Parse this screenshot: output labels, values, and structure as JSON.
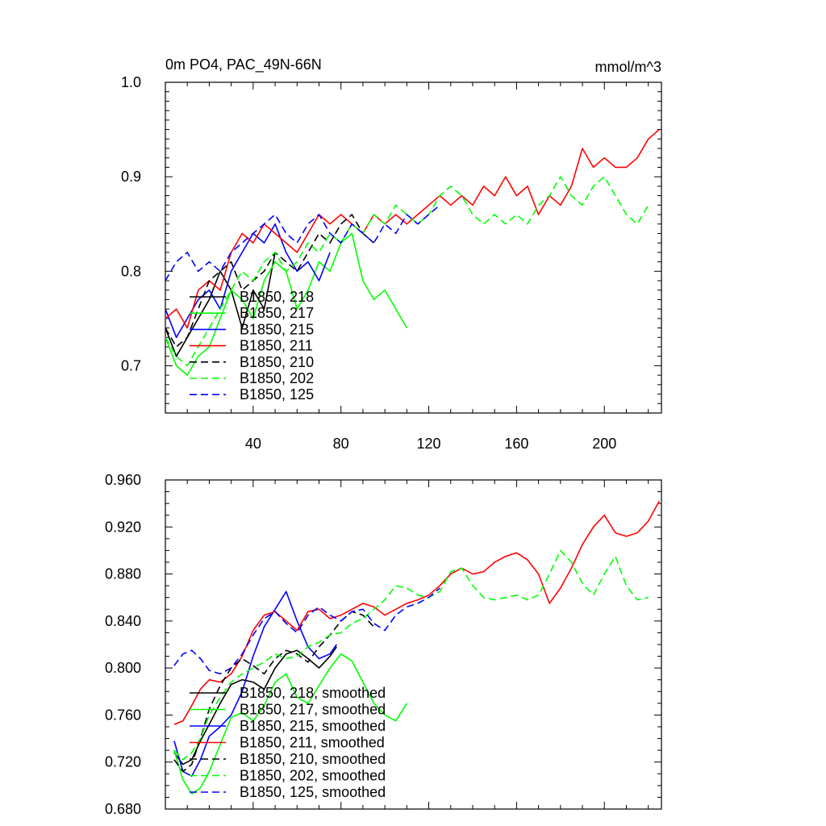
{
  "chart_data": [
    {
      "type": "line",
      "title": "0m PO4, PAC_49N-66N",
      "units": "mmol/m^3",
      "xlim": [
        0,
        226
      ],
      "ylim": [
        0.65,
        1.0
      ],
      "xticks": [
        40,
        80,
        120,
        160,
        200
      ],
      "yticks": [
        0.7,
        0.8,
        0.9,
        1.0
      ],
      "ytick_labels": [
        "0.7",
        "0.8",
        "0.9",
        "1.0"
      ],
      "legend_position": "lower-left",
      "series": [
        {
          "name": "B1850, 218",
          "color": "#000000",
          "dash": "solid",
          "x": [
            0,
            5,
            10,
            15,
            20,
            25,
            30,
            35,
            40,
            45,
            50
          ],
          "y": [
            0.74,
            0.71,
            0.73,
            0.75,
            0.77,
            0.8,
            0.78,
            0.74,
            0.78,
            0.76,
            0.82
          ]
        },
        {
          "name": "B1850, 217",
          "color": "#00ff00",
          "dash": "solid",
          "x": [
            0,
            5,
            10,
            15,
            20,
            25,
            30,
            35,
            40,
            45,
            50,
            55,
            60,
            65,
            70,
            75,
            80,
            85,
            90,
            95,
            100,
            105,
            110
          ],
          "y": [
            0.73,
            0.7,
            0.69,
            0.71,
            0.72,
            0.75,
            0.78,
            0.77,
            0.75,
            0.79,
            0.81,
            0.8,
            0.76,
            0.78,
            0.81,
            0.8,
            0.83,
            0.84,
            0.79,
            0.77,
            0.78,
            0.76,
            0.74
          ]
        },
        {
          "name": "B1850, 215",
          "color": "#0000ff",
          "dash": "solid",
          "x": [
            0,
            5,
            10,
            15,
            20,
            25,
            30,
            35,
            40,
            45,
            50,
            55,
            60,
            65,
            70,
            75
          ],
          "y": [
            0.76,
            0.73,
            0.75,
            0.77,
            0.78,
            0.76,
            0.8,
            0.82,
            0.84,
            0.83,
            0.85,
            0.82,
            0.8,
            0.81,
            0.79,
            0.82
          ]
        },
        {
          "name": "B1850, 211",
          "color": "#ff0000",
          "dash": "solid",
          "x": [
            0,
            5,
            10,
            15,
            20,
            25,
            30,
            35,
            40,
            45,
            50,
            55,
            60,
            65,
            70,
            75,
            80,
            85,
            90,
            95,
            100,
            105,
            110,
            115,
            120,
            125,
            130,
            135,
            140,
            145,
            150,
            155,
            160,
            165,
            170,
            175,
            180,
            185,
            190,
            195,
            200,
            205,
            210,
            215,
            220,
            225
          ],
          "y": [
            0.75,
            0.76,
            0.74,
            0.78,
            0.79,
            0.78,
            0.82,
            0.84,
            0.83,
            0.85,
            0.84,
            0.83,
            0.82,
            0.84,
            0.86,
            0.85,
            0.86,
            0.85,
            0.84,
            0.86,
            0.85,
            0.86,
            0.85,
            0.86,
            0.87,
            0.88,
            0.87,
            0.88,
            0.87,
            0.89,
            0.88,
            0.9,
            0.88,
            0.89,
            0.86,
            0.88,
            0.87,
            0.89,
            0.93,
            0.91,
            0.92,
            0.91,
            0.91,
            0.92,
            0.94,
            0.95
          ]
        },
        {
          "name": "B1850, 210",
          "color": "#000000",
          "dash": "dash",
          "x": [
            0,
            5,
            10,
            15,
            20,
            25,
            30,
            35,
            40,
            45,
            50,
            55,
            60,
            65,
            70,
            75,
            80,
            85,
            90,
            95
          ],
          "y": [
            0.74,
            0.72,
            0.73,
            0.76,
            0.79,
            0.8,
            0.81,
            0.78,
            0.79,
            0.8,
            0.82,
            0.81,
            0.8,
            0.82,
            0.84,
            0.83,
            0.85,
            0.86,
            0.84,
            0.83
          ]
        },
        {
          "name": "B1850, 202",
          "color": "#00ff00",
          "dash": "dash",
          "x": [
            0,
            5,
            10,
            15,
            20,
            25,
            30,
            35,
            40,
            45,
            50,
            55,
            60,
            65,
            70,
            75,
            80,
            85,
            90,
            95,
            100,
            105,
            110,
            115,
            120,
            125,
            130,
            135,
            140,
            145,
            150,
            155,
            160,
            165,
            170,
            175,
            180,
            185,
            190,
            195,
            200,
            205,
            210,
            215,
            220
          ],
          "y": [
            0.73,
            0.71,
            0.7,
            0.72,
            0.74,
            0.76,
            0.78,
            0.8,
            0.79,
            0.81,
            0.82,
            0.8,
            0.81,
            0.83,
            0.82,
            0.84,
            0.83,
            0.85,
            0.84,
            0.86,
            0.85,
            0.87,
            0.86,
            0.85,
            0.86,
            0.88,
            0.89,
            0.88,
            0.86,
            0.85,
            0.86,
            0.85,
            0.86,
            0.85,
            0.87,
            0.88,
            0.9,
            0.88,
            0.87,
            0.89,
            0.9,
            0.88,
            0.86,
            0.85,
            0.87
          ]
        },
        {
          "name": "B1850, 125",
          "color": "#0000ff",
          "dash": "dash",
          "x": [
            0,
            5,
            10,
            15,
            20,
            25,
            30,
            35,
            40,
            45,
            50,
            55,
            60,
            65,
            70,
            75,
            80,
            85,
            90,
            95,
            100,
            105,
            110,
            115,
            120,
            125
          ],
          "y": [
            0.79,
            0.81,
            0.82,
            0.8,
            0.81,
            0.8,
            0.82,
            0.83,
            0.84,
            0.85,
            0.86,
            0.84,
            0.83,
            0.85,
            0.86,
            0.84,
            0.83,
            0.85,
            0.84,
            0.83,
            0.85,
            0.84,
            0.86,
            0.85,
            0.86,
            0.87
          ]
        }
      ]
    },
    {
      "type": "line",
      "title": "",
      "xlim": [
        0,
        226
      ],
      "ylim": [
        0.68,
        0.96
      ],
      "xticks": [
        40,
        80,
        120,
        160,
        200
      ],
      "xtick_labels_shown": false,
      "yticks": [
        0.68,
        0.72,
        0.76,
        0.8,
        0.84,
        0.88,
        0.92,
        0.96
      ],
      "ytick_labels": [
        "0.680",
        "0.720",
        "0.760",
        "0.800",
        "0.840",
        "0.880",
        "0.920",
        "0.960"
      ],
      "legend_position": "lower-left",
      "series": [
        {
          "name": "B1850, 218, smoothed",
          "color": "#000000",
          "dash": "solid",
          "x": [
            4,
            8,
            12,
            16,
            20,
            25,
            30,
            35,
            40,
            45,
            50,
            55,
            60,
            65,
            70,
            75,
            78
          ],
          "y": [
            0.728,
            0.718,
            0.722,
            0.738,
            0.752,
            0.77,
            0.786,
            0.79,
            0.788,
            0.782,
            0.8,
            0.812,
            0.815,
            0.808,
            0.8,
            0.81,
            0.818
          ]
        },
        {
          "name": "B1850, 217, smoothed",
          "color": "#00ff00",
          "dash": "solid",
          "x": [
            4,
            8,
            12,
            16,
            20,
            25,
            30,
            35,
            40,
            45,
            50,
            55,
            60,
            65,
            70,
            75,
            80,
            85,
            90,
            95,
            100,
            105,
            110
          ],
          "y": [
            0.73,
            0.705,
            0.693,
            0.698,
            0.712,
            0.735,
            0.758,
            0.762,
            0.755,
            0.768,
            0.788,
            0.795,
            0.775,
            0.77,
            0.785,
            0.8,
            0.812,
            0.806,
            0.788,
            0.77,
            0.76,
            0.755,
            0.77
          ]
        },
        {
          "name": "B1850, 215, smoothed",
          "color": "#0000ff",
          "dash": "solid",
          "x": [
            4,
            8,
            12,
            16,
            20,
            25,
            30,
            35,
            40,
            45,
            50,
            55,
            60,
            65,
            70,
            75,
            78
          ],
          "y": [
            0.738,
            0.712,
            0.708,
            0.722,
            0.742,
            0.75,
            0.76,
            0.78,
            0.81,
            0.835,
            0.85,
            0.865,
            0.84,
            0.818,
            0.808,
            0.812,
            0.82
          ]
        },
        {
          "name": "B1850, 211, smoothed",
          "color": "#ff0000",
          "dash": "solid",
          "x": [
            4,
            8,
            12,
            16,
            20,
            25,
            30,
            35,
            40,
            45,
            50,
            55,
            60,
            65,
            70,
            75,
            80,
            85,
            90,
            95,
            100,
            105,
            110,
            115,
            120,
            125,
            130,
            135,
            140,
            145,
            150,
            155,
            160,
            165,
            170,
            175,
            180,
            185,
            190,
            195,
            200,
            205,
            210,
            215,
            220,
            225
          ],
          "y": [
            0.752,
            0.755,
            0.768,
            0.782,
            0.79,
            0.788,
            0.795,
            0.81,
            0.832,
            0.845,
            0.848,
            0.84,
            0.832,
            0.848,
            0.85,
            0.842,
            0.845,
            0.85,
            0.855,
            0.852,
            0.845,
            0.85,
            0.855,
            0.858,
            0.862,
            0.87,
            0.88,
            0.885,
            0.88,
            0.882,
            0.89,
            0.895,
            0.898,
            0.892,
            0.88,
            0.855,
            0.868,
            0.885,
            0.905,
            0.92,
            0.93,
            0.915,
            0.912,
            0.915,
            0.925,
            0.942
          ]
        },
        {
          "name": "B1850, 210, smoothed",
          "color": "#000000",
          "dash": "dash",
          "x": [
            4,
            8,
            12,
            16,
            20,
            25,
            30,
            35,
            40,
            45,
            50,
            55,
            60,
            65,
            70,
            75,
            80,
            85,
            90,
            95
          ],
          "y": [
            0.722,
            0.712,
            0.718,
            0.74,
            0.765,
            0.785,
            0.8,
            0.808,
            0.802,
            0.795,
            0.808,
            0.815,
            0.812,
            0.805,
            0.818,
            0.828,
            0.84,
            0.848,
            0.845,
            0.835
          ]
        },
        {
          "name": "B1850, 202, smoothed",
          "color": "#00ff00",
          "dash": "dash",
          "x": [
            4,
            8,
            12,
            16,
            20,
            25,
            30,
            35,
            40,
            45,
            50,
            55,
            60,
            65,
            70,
            75,
            80,
            85,
            90,
            95,
            100,
            105,
            110,
            115,
            120,
            125,
            130,
            135,
            140,
            145,
            150,
            155,
            160,
            165,
            170,
            175,
            180,
            185,
            190,
            195,
            200,
            205,
            210,
            215,
            220
          ],
          "y": [
            0.73,
            0.722,
            0.728,
            0.74,
            0.76,
            0.775,
            0.788,
            0.795,
            0.8,
            0.805,
            0.812,
            0.808,
            0.81,
            0.818,
            0.822,
            0.828,
            0.83,
            0.838,
            0.842,
            0.85,
            0.858,
            0.87,
            0.868,
            0.862,
            0.86,
            0.865,
            0.882,
            0.885,
            0.87,
            0.86,
            0.858,
            0.86,
            0.862,
            0.858,
            0.862,
            0.88,
            0.9,
            0.89,
            0.872,
            0.862,
            0.88,
            0.895,
            0.87,
            0.858,
            0.86
          ]
        },
        {
          "name": "B1850, 125, smoothed",
          "color": "#0000ff",
          "dash": "dash",
          "x": [
            4,
            8,
            12,
            16,
            20,
            25,
            30,
            35,
            40,
            45,
            50,
            55,
            60,
            65,
            70,
            75,
            80,
            85,
            90,
            95,
            100,
            105,
            110,
            115,
            120,
            125
          ],
          "y": [
            0.802,
            0.812,
            0.815,
            0.808,
            0.798,
            0.795,
            0.8,
            0.812,
            0.828,
            0.842,
            0.848,
            0.838,
            0.83,
            0.845,
            0.852,
            0.845,
            0.84,
            0.848,
            0.85,
            0.838,
            0.832,
            0.845,
            0.852,
            0.855,
            0.86,
            0.868
          ]
        }
      ]
    }
  ]
}
